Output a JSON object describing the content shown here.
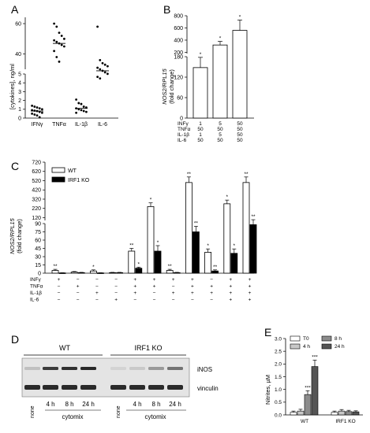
{
  "panels": {
    "A": {
      "letter": "A",
      "type": "scatter",
      "ylabel": "[cytokines], ng/ml",
      "categories": [
        "IFNγ",
        "TNFα",
        "IL-1β",
        "IL-6"
      ],
      "upper_ticks": [
        "40",
        "60"
      ],
      "lower_ticks": [
        "0",
        "1",
        "2",
        "3",
        "4",
        "5"
      ],
      "groups": [
        {
          "name": "IFNγ",
          "values": [
            1.4,
            1.3,
            1.2,
            1.1,
            1.0,
            0.9,
            0.85,
            0.8,
            0.7,
            0.6,
            0.5,
            0.4,
            0.3,
            0.1
          ],
          "mean": 0.8
        },
        {
          "name": "TNFα",
          "values": [
            60,
            58,
            54,
            52,
            50,
            49,
            48,
            47,
            46,
            45,
            42,
            38,
            35
          ],
          "mean": 47
        },
        {
          "name": "IL-1β",
          "values": [
            2.1,
            1.7,
            1.6,
            1.3,
            1.2,
            1.1,
            1.0,
            0.9,
            0.8,
            0.7,
            0.6
          ],
          "mean": 1.1
        },
        {
          "name": "IL-6",
          "values": [
            58,
            36,
            34,
            33,
            32,
            31,
            30,
            29,
            28,
            27,
            25,
            24
          ],
          "mean": 29
        }
      ]
    },
    "B": {
      "letter": "B",
      "type": "bar",
      "ylabel_italic": "NOS2/RPL15",
      "ylabel_sub": "(fold change)",
      "upper_ticks": [
        "200",
        "400",
        "600",
        "800"
      ],
      "lower_ticks": [
        "0",
        "60",
        "120",
        "180"
      ],
      "values": [
        148,
        320,
        560
      ],
      "errors": [
        30,
        60,
        170
      ],
      "sig": [
        "*",
        "*",
        "*"
      ],
      "table": {
        "rows": [
          "INFγ",
          "TNFα",
          "IL-1β",
          "IL-6"
        ],
        "cols": [
          [
            "1",
            "50",
            "1",
            "50"
          ],
          [
            "5",
            "50",
            "5",
            "50"
          ],
          [
            "50",
            "50",
            "50",
            "50"
          ]
        ]
      }
    },
    "C": {
      "letter": "C",
      "type": "bar",
      "ylabel_italic": "NOS2/RPL15",
      "ylabel_sub": "(fold change)",
      "upper_ticks": [
        "120",
        "220",
        "320",
        "420",
        "520",
        "620",
        "720"
      ],
      "lower_ticks": [
        "0",
        "15",
        "30",
        "45",
        "60",
        "75",
        "90"
      ],
      "legend": [
        "WT",
        "IRF1 KO"
      ],
      "wt": [
        5,
        2,
        4,
        1,
        40,
        240,
        5,
        500,
        38,
        270,
        500
      ],
      "ko": [
        0.5,
        1,
        0.5,
        1,
        9,
        40,
        1,
        75,
        4,
        36,
        88
      ],
      "wt_err": [
        2,
        1,
        2,
        0.5,
        5,
        40,
        2,
        60,
        6,
        40,
        60
      ],
      "ko_err": [
        0.3,
        0.5,
        0.3,
        0.5,
        2,
        10,
        0.5,
        10,
        2,
        8,
        10
      ],
      "wt_sig": [
        "**",
        "",
        "*",
        "",
        "**",
        "*",
        "**",
        "**",
        "*",
        "*",
        "**"
      ],
      "ko_sig": [
        "",
        "",
        "",
        "",
        "*",
        "*",
        "",
        "**",
        "**",
        "*",
        "**"
      ],
      "matrix": {
        "rows": [
          "INFγ",
          "TNFα",
          "IL-1β",
          "IL-6"
        ],
        "cells": [
          [
            "+",
            "−",
            "−",
            "−",
            "+",
            "+",
            "+",
            "+",
            "−",
            "+",
            "+"
          ],
          [
            "−",
            "+",
            "−",
            "−",
            "+",
            "+",
            "−",
            "+",
            "+",
            "+",
            "+"
          ],
          [
            "−",
            "−",
            "+",
            "−",
            "+",
            "−",
            "+",
            "+",
            "+",
            "+",
            "+"
          ],
          [
            "−",
            "−",
            "−",
            "+",
            "−",
            "−",
            "−",
            "−",
            "−",
            "+",
            "+"
          ]
        ]
      }
    },
    "D": {
      "letter": "D",
      "group_left": "WT",
      "group_right": "IRF1 KO",
      "band_labels": [
        "iNOS",
        "vinculin"
      ],
      "lane_labels": [
        "none",
        "4 h",
        "8 h",
        "24 h",
        "none",
        "4 h",
        "8 h",
        "24 h"
      ],
      "cytomix": "cytomix"
    },
    "E": {
      "letter": "E",
      "type": "bar",
      "ylabel": "Nitrites, µM",
      "yticks": [
        "0.0",
        "0.5",
        "1.0",
        "1.5",
        "2.0",
        "2.5",
        "3.0"
      ],
      "groups": [
        "WT",
        "IRF1 KO"
      ],
      "legend": [
        "T0",
        "4 h",
        "8 h",
        "24 h"
      ],
      "colors": [
        "#ffffff",
        "#c8c8c8",
        "#8c8c8c",
        "#555555"
      ],
      "values": [
        [
          0.1,
          0.15,
          0.8,
          1.9
        ],
        [
          0.1,
          0.15,
          0.13,
          0.12
        ]
      ],
      "errors": [
        [
          0.05,
          0.07,
          0.15,
          0.25
        ],
        [
          0.05,
          0.06,
          0.05,
          0.04
        ]
      ],
      "sig": [
        [
          "",
          "",
          "***",
          "***"
        ],
        [
          "",
          "",
          "",
          ""
        ]
      ],
      "ylim": [
        0,
        3.0
      ]
    }
  }
}
